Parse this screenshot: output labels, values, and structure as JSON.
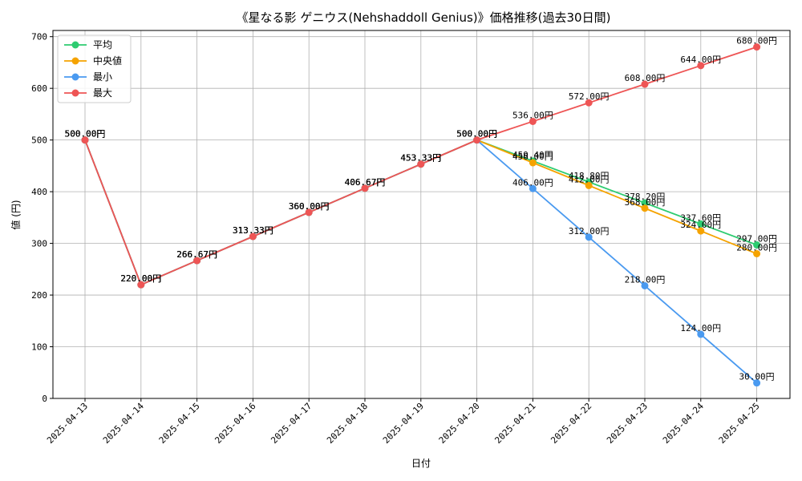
{
  "chart_data": {
    "type": "line",
    "title": "《星なる影 ゲニウス(Nehshaddoll Genius)》価格推移(過去30日間)",
    "xlabel": "日付",
    "ylabel": "値 (円)",
    "ylim": [
      0,
      700
    ],
    "yticks": [
      0,
      100,
      200,
      300,
      400,
      500,
      600,
      700
    ],
    "grid": true,
    "legend_position": "top-left",
    "x": [
      "2025-04-13",
      "2025-04-14",
      "2025-04-15",
      "2025-04-16",
      "2025-04-17",
      "2025-04-18",
      "2025-04-19",
      "2025-04-20",
      "2025-04-21",
      "2025-04-22",
      "2025-04-23",
      "2025-04-24",
      "2025-04-25"
    ],
    "series": [
      {
        "name": "平均",
        "color": "#2ecc71",
        "values": [
          500,
          220,
          266.67,
          313.33,
          360,
          406.67,
          453.33,
          500,
          459.4,
          418.8,
          378.2,
          337.6,
          297
        ],
        "labels": [
          "500.00円",
          "220.00円",
          "266.67円",
          "313.33円",
          "360.00円",
          "406.67円",
          "453.33円",
          "500.00円",
          "459.40円",
          "418.80円",
          "378.20円",
          "337.60円",
          "297.00円"
        ]
      },
      {
        "name": "中央値",
        "color": "#f5a300",
        "values": [
          500,
          220,
          266.67,
          313.33,
          360,
          406.67,
          453.33,
          500,
          456,
          412,
          368,
          324,
          280
        ],
        "labels": [
          "500.00円",
          "220.00円",
          "266.67円",
          "313.33円",
          "360.00円",
          "406.67円",
          "453.33円",
          "500.00円",
          "456.00円",
          "412.00円",
          "368.00円",
          "324.00円",
          "280.00円"
        ]
      },
      {
        "name": "最小",
        "color": "#4a9af0",
        "values": [
          500,
          220,
          266.67,
          313.33,
          360,
          406.67,
          453.33,
          500,
          406,
          312,
          218,
          124,
          30
        ],
        "labels": [
          "500.00円",
          "220.00円",
          "266.67円",
          "313.33円",
          "360.00円",
          "406.67円",
          "453.33円",
          "500.00円",
          "406.00円",
          "312.00円",
          "218.00円",
          "124.00円",
          "30.00円"
        ]
      },
      {
        "name": "最大",
        "color": "#ee5555",
        "values": [
          500,
          220,
          266.67,
          313.33,
          360,
          406.67,
          453.33,
          500,
          536,
          572,
          608,
          644,
          680
        ],
        "labels": [
          "500.00円",
          "220.00円",
          "266.67円",
          "313.33円",
          "360.00円",
          "406.67円",
          "453.33円",
          "500.00円",
          "536.00円",
          "572.00円",
          "608.00円",
          "644.00円",
          "680.00円"
        ]
      }
    ]
  }
}
